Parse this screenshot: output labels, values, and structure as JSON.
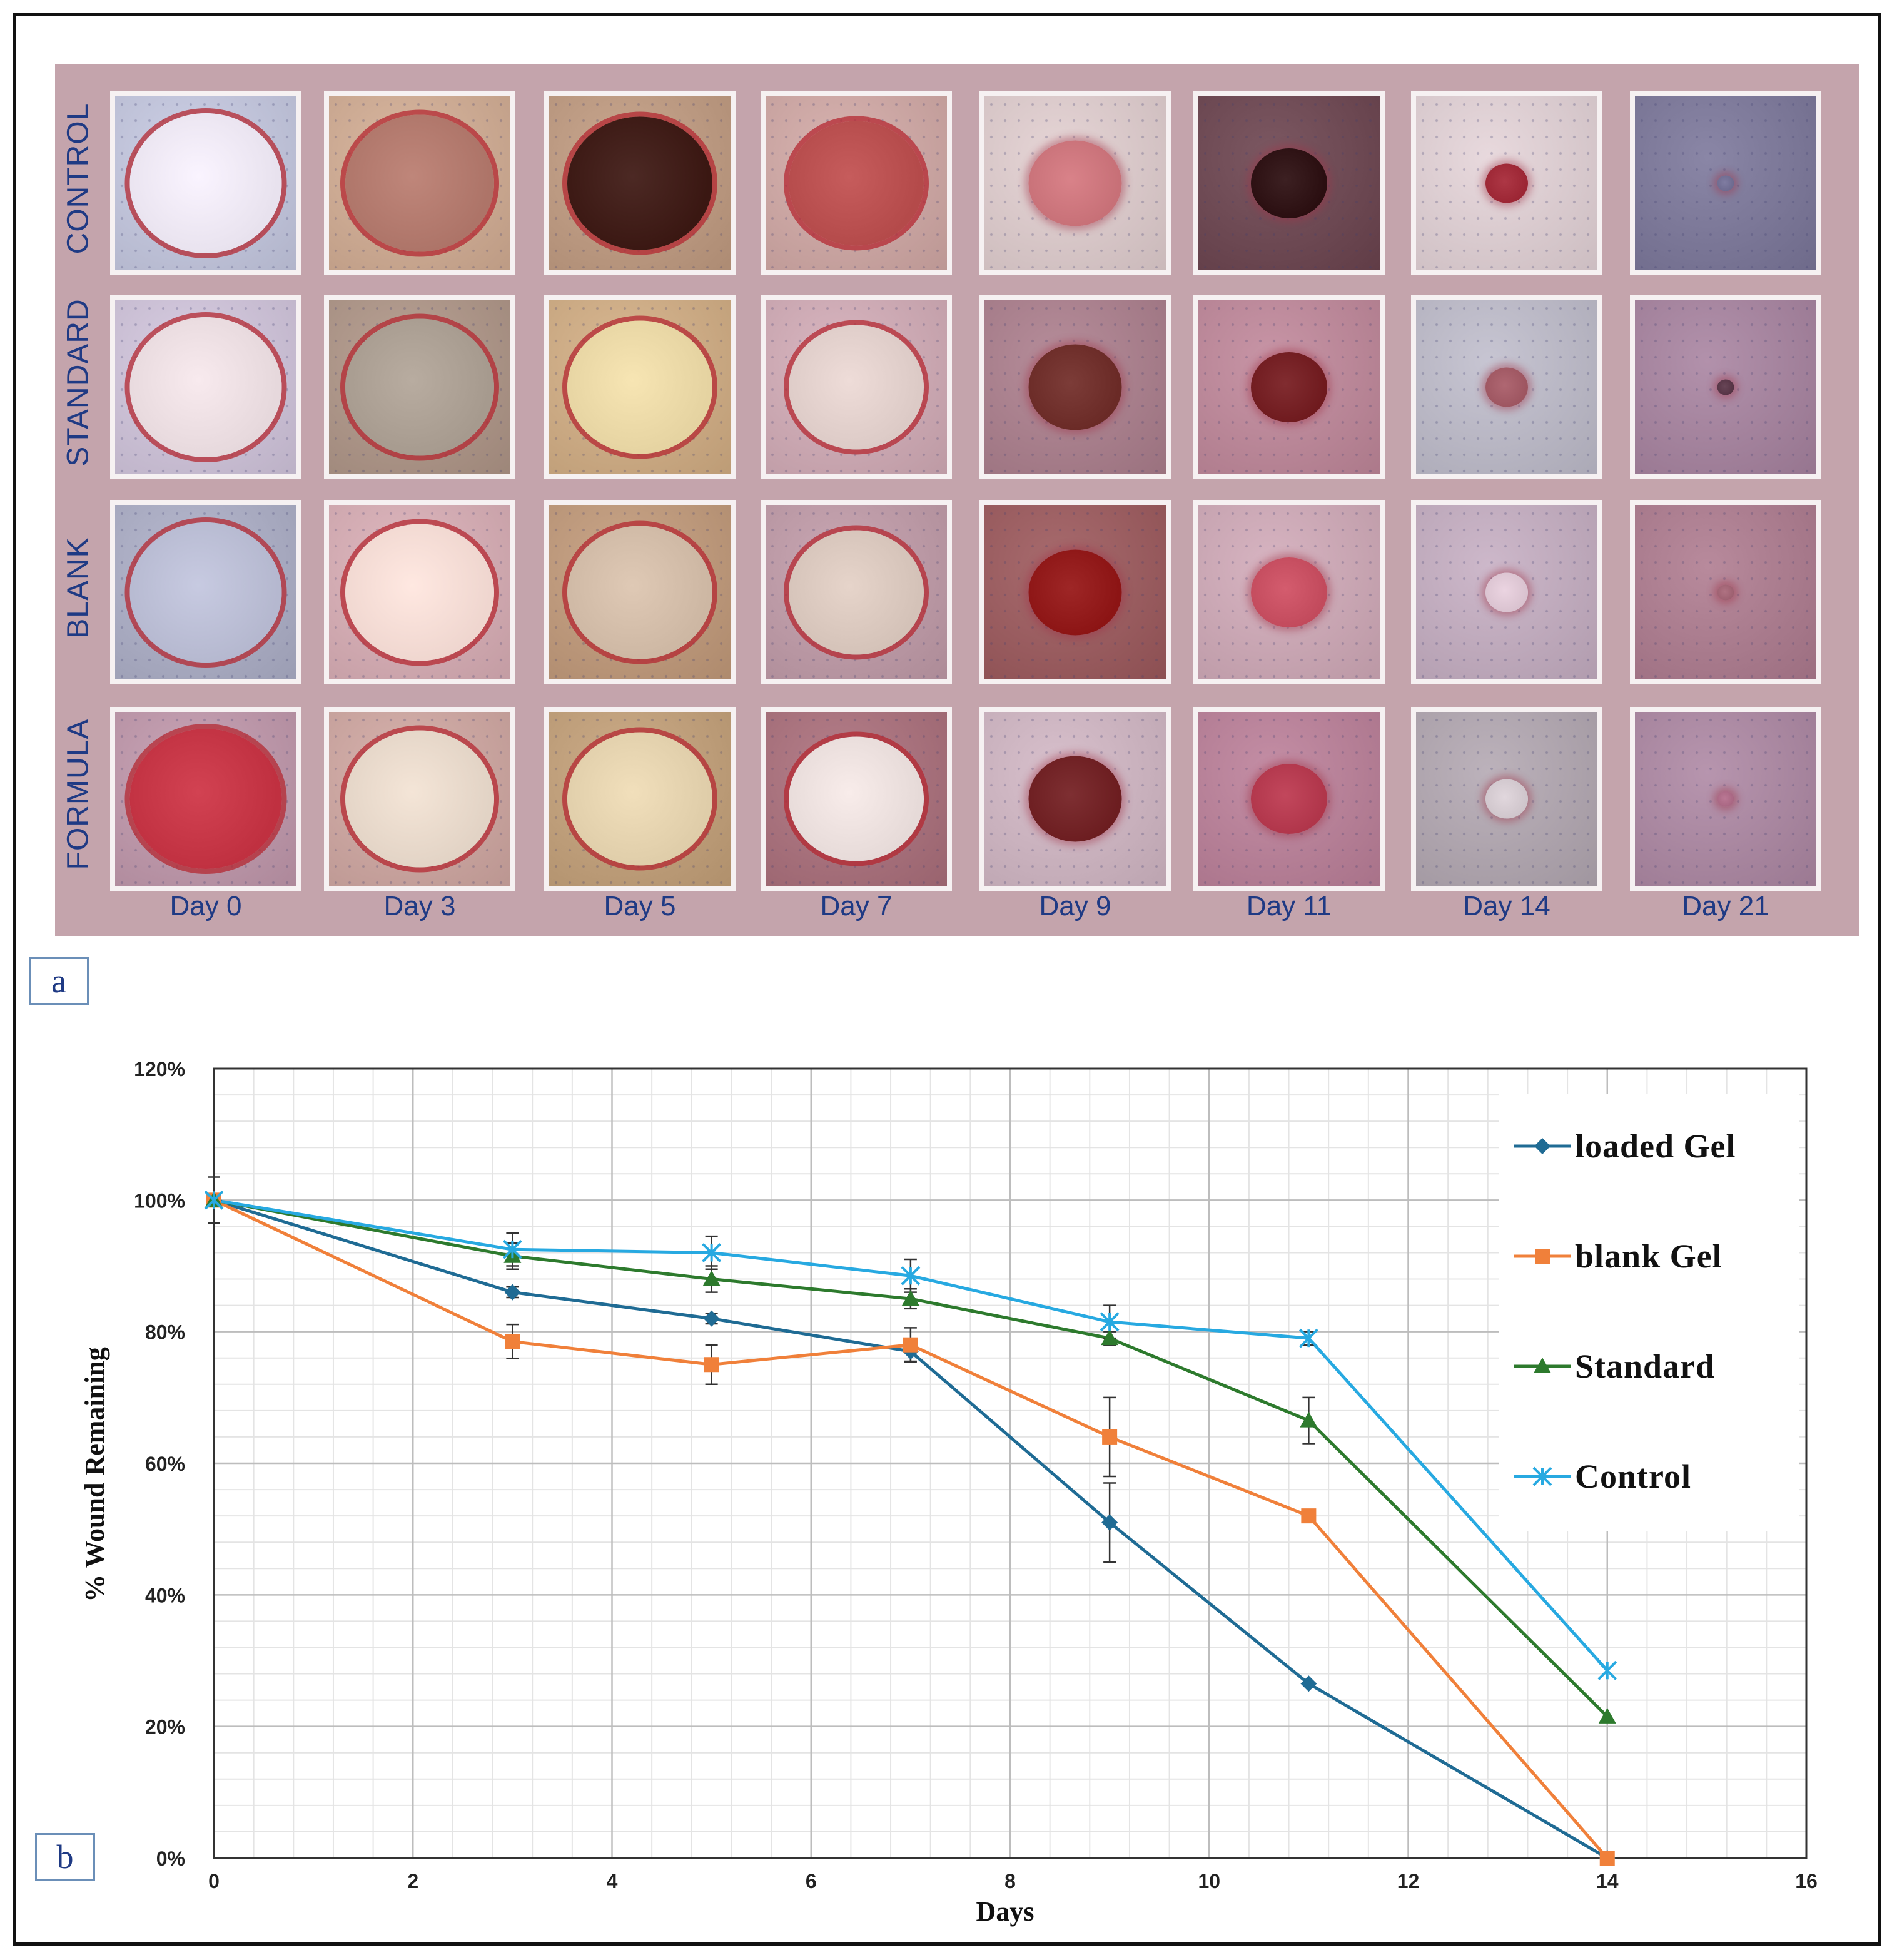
{
  "panel_a": {
    "tag": "a",
    "rows": [
      {
        "label": "CONTROL"
      },
      {
        "label": "STANDARD"
      },
      {
        "label": "BLANK"
      },
      {
        "label": "FORMULA"
      }
    ],
    "days": [
      "Day 0",
      "Day 3",
      "Day 5",
      "Day 7",
      "Day 9",
      "Day 11",
      "Day 14",
      "Day 21"
    ]
  },
  "panel_b": {
    "tag": "b"
  },
  "colors": {
    "loaded_gel": "#1f6b94",
    "blank_gel": "#f0803a",
    "standard": "#2d7a2d",
    "control": "#27a9e1",
    "panel_a_background": "#c4a4ac",
    "row_label_text": "#1f3a84"
  },
  "chart_data": {
    "type": "line",
    "xlabel": "Days",
    "ylabel": "% Wound Remaining",
    "xlim": [
      0,
      16
    ],
    "ylim": [
      0,
      120
    ],
    "x_ticks": [
      "0",
      "2",
      "4",
      "6",
      "8",
      "10",
      "12",
      "14",
      "16"
    ],
    "y_ticks": [
      "0%",
      "20%",
      "40%",
      "60%",
      "80%",
      "100%",
      "120%"
    ],
    "grid": "major and minor",
    "legend_position": "right",
    "series": [
      {
        "name": "loaded Gel",
        "marker": "diamond",
        "x": [
          0,
          3,
          5,
          7,
          9,
          11,
          14
        ],
        "values": [
          100,
          86,
          82,
          77,
          51,
          26.5,
          0
        ],
        "errors": [
          0,
          0.8,
          0.8,
          1.5,
          6,
          0,
          0
        ]
      },
      {
        "name": "blank Gel",
        "marker": "square",
        "x": [
          0,
          3,
          5,
          7,
          9,
          11,
          14
        ],
        "values": [
          100,
          78.5,
          75,
          78,
          64,
          52,
          0
        ],
        "errors": [
          0,
          2.6,
          3,
          2.6,
          6,
          0,
          0
        ]
      },
      {
        "name": "Standard",
        "marker": "triangle",
        "x": [
          0,
          3,
          5,
          7,
          9,
          11,
          14
        ],
        "values": [
          100,
          91.5,
          88,
          85,
          79,
          66.5,
          21.5
        ],
        "errors": [
          0,
          2,
          2,
          1.5,
          1,
          3.5,
          0
        ]
      },
      {
        "name": "Control",
        "marker": "x",
        "x": [
          0,
          3,
          5,
          7,
          9,
          11,
          14
        ],
        "values": [
          100,
          92.5,
          92,
          88.5,
          81.5,
          79,
          28.5
        ],
        "errors": [
          3.5,
          2.5,
          2.5,
          2.5,
          2.5,
          1,
          0
        ]
      }
    ]
  }
}
